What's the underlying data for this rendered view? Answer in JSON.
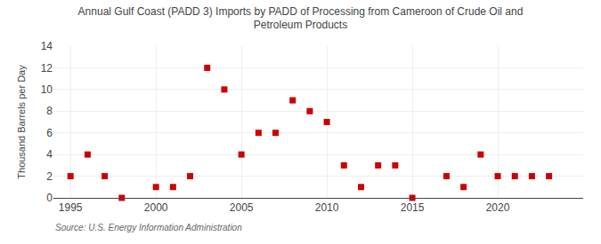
{
  "chart_data": {
    "type": "scatter",
    "title": "Annual Gulf Coast (PADD 3) Imports by PADD of Processing from Cameroon of Crude Oil and\nPetroleum Products",
    "ylabel": "Thousand Barrels per Day",
    "annotations": [
      "Source: U.S. Energy Information Administration"
    ],
    "x": [
      1995,
      1996,
      1997,
      1998,
      2000,
      2001,
      2002,
      2003,
      2004,
      2005,
      2006,
      2007,
      2008,
      2009,
      2010,
      2011,
      2012,
      2013,
      2014,
      2015,
      2017,
      2018,
      2019,
      2020,
      2021,
      2022,
      2023
    ],
    "values": [
      2,
      4,
      2,
      0,
      1,
      1,
      2,
      12,
      10,
      4,
      6,
      6,
      9,
      8,
      7,
      3,
      1,
      3,
      3,
      0,
      2,
      1,
      4,
      2,
      2,
      2,
      2
    ],
    "color": "#cc0000",
    "marker": "square",
    "xlim": [
      1994,
      2025
    ],
    "xticks": [
      1995,
      2000,
      2005,
      2010,
      2015,
      2020
    ],
    "ylim": [
      0,
      14
    ],
    "yticks": [
      0,
      2,
      4,
      6,
      8,
      10,
      12,
      14
    ],
    "grid": true
  }
}
